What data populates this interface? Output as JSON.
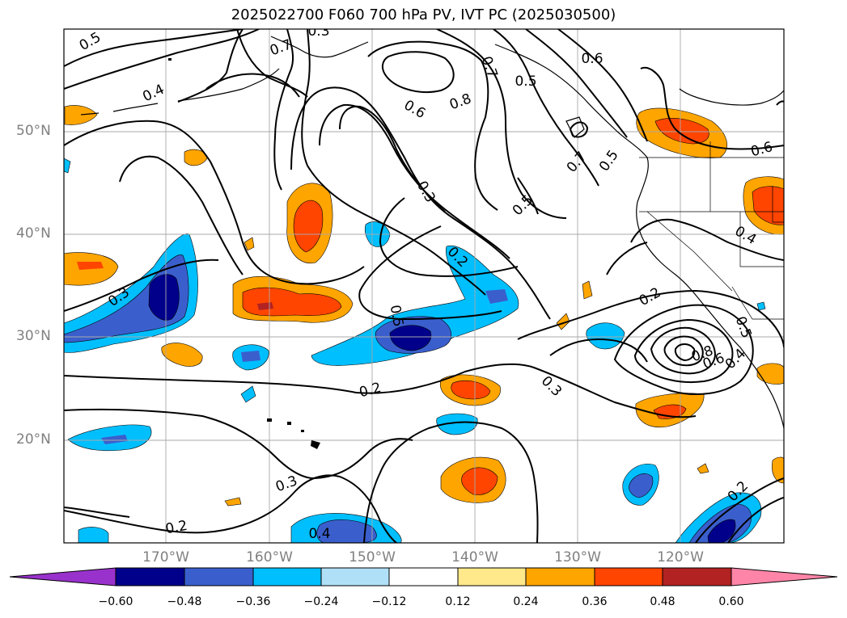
{
  "title": "2025022700 F060 700 hPa PV, IVT PC (2025030500)",
  "lat_labels": [
    "50°N",
    "40°N",
    "30°N",
    "20°N"
  ],
  "lon_labels": [
    "170°W",
    "160°W",
    "150°W",
    "140°W",
    "130°W",
    "120°W"
  ],
  "colorbar": {
    "ticks": [
      "−0.60",
      "−0.48",
      "−0.36",
      "−0.24",
      "−0.12",
      "0.12",
      "0.24",
      "0.36",
      "0.48",
      "0.60"
    ],
    "colors": [
      "#9932cc",
      "#00008b",
      "#3a5fcd",
      "#00bfff",
      "#b0e0f8",
      "#ffffff",
      "#ffe98a",
      "#ffa500",
      "#ff4500",
      "#b22222",
      "#ff85a8"
    ]
  },
  "contour_labels": [
    "0.5",
    "0.4",
    "0.3",
    "0.7",
    "0.6",
    "0.5",
    "0.8",
    "0.7",
    "0.6",
    "0.5",
    "0.3",
    "0.2",
    "0.5",
    "0.7",
    "0.5",
    "0.3",
    "0.2",
    "0.3",
    "0.2",
    "0.4",
    "0.2",
    "0.4",
    "0.8",
    "0.6",
    "0.4",
    "0.5",
    "0.3",
    "0.2",
    "0.6"
  ]
}
